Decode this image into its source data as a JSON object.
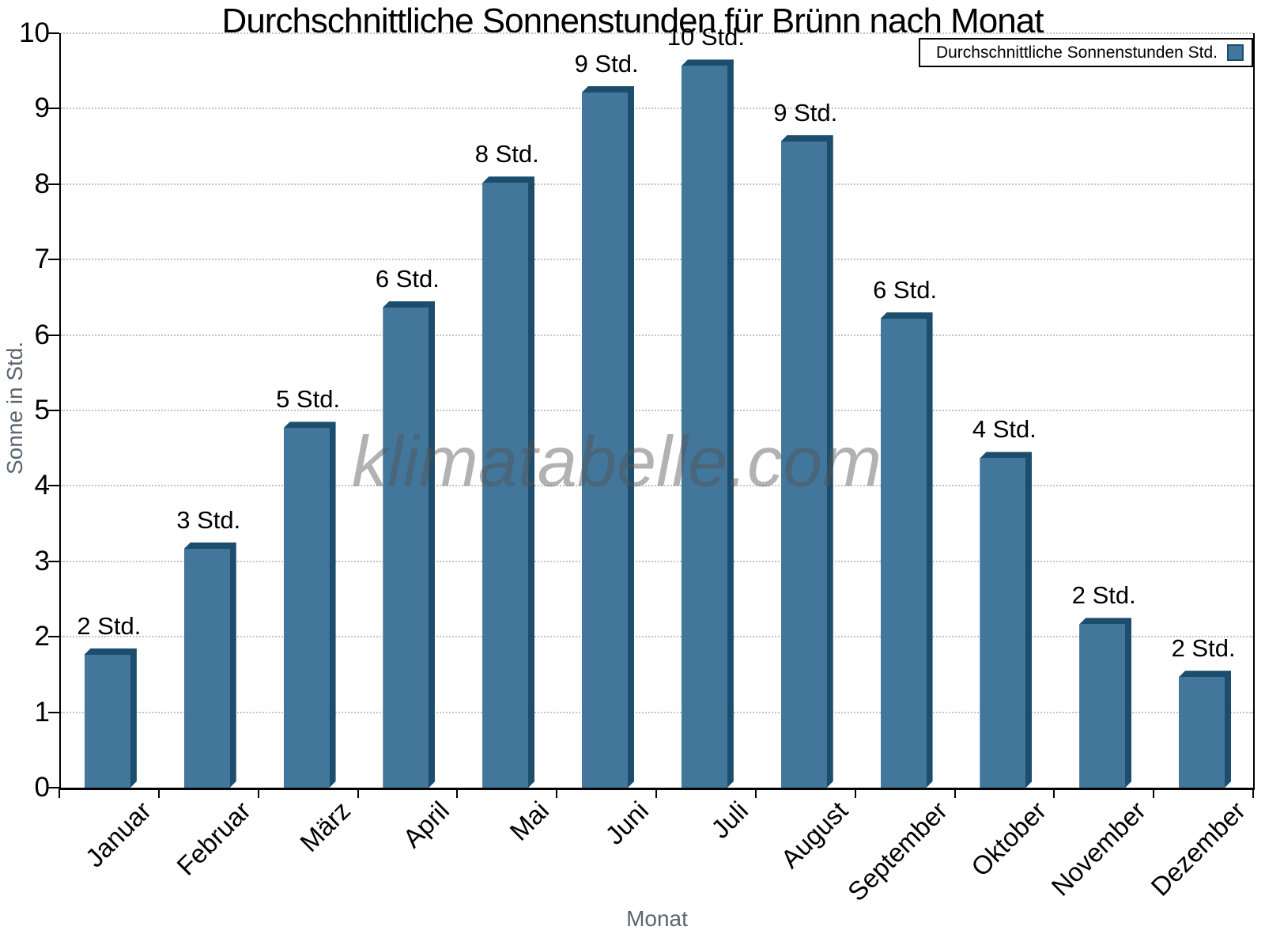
{
  "header": {
    "title": "Durchschnittliche Sonnenstunden für Brünn nach Monat"
  },
  "watermark": "klimatabelle.com",
  "legend": {
    "label": "Durchschnittliche Sonnenstunden Std."
  },
  "axes": {
    "x_label": "Monat",
    "y_label": "Sonne in Std."
  },
  "colors": {
    "bar_front": "#42769a",
    "bar_shade": "#1d4d6c",
    "grid": "#c4c4c4",
    "axis": "#000000",
    "axis_label_gray": "#5b6570",
    "watermark": "rgba(85,85,85,0.45)"
  },
  "chart_data": {
    "type": "bar",
    "title": "Durchschnittliche Sonnenstunden für Brünn nach Monat",
    "xlabel": "Monat",
    "ylabel": "Sonne in Std.",
    "categories": [
      "Januar",
      "Februar",
      "März",
      "April",
      "Mai",
      "Juni",
      "Juli",
      "August",
      "September",
      "Oktober",
      "November",
      "Dezember"
    ],
    "values": [
      1.85,
      3.25,
      4.85,
      6.45,
      8.1,
      9.3,
      9.65,
      8.65,
      6.3,
      4.45,
      2.25,
      1.55
    ],
    "bar_labels": [
      "2 Std.",
      "3 Std.",
      "5 Std.",
      "6 Std.",
      "8 Std.",
      "9 Std.",
      "10 Std.",
      "9 Std.",
      "6 Std.",
      "4 Std.",
      "2 Std.",
      "2 Std."
    ],
    "ylim": [
      0,
      10
    ],
    "y_ticks": [
      0,
      1,
      2,
      3,
      4,
      5,
      6,
      7,
      8,
      9,
      10
    ],
    "grid": "horizontal-dotted",
    "legend_position": "top-right"
  }
}
